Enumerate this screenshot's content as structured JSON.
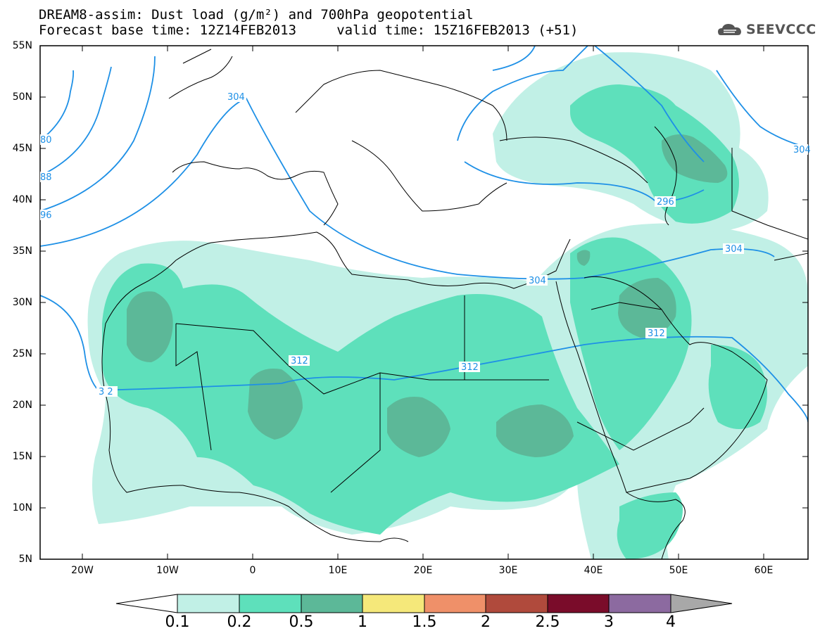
{
  "header": {
    "title_line1": "DREAM8-assim: Dust load (g/m²) and 700hPa geopotential",
    "title_line2": "Forecast base time: 12Z14FEB2013     valid time: 15Z16FEB2013 (+51)",
    "logo_text": "SEEVCCC"
  },
  "map": {
    "lat_labels": [
      "55N",
      "50N",
      "45N",
      "40N",
      "35N",
      "30N",
      "25N",
      "20N",
      "15N",
      "10N",
      "5N"
    ],
    "lon_labels": [
      "20W",
      "10W",
      "0",
      "10E",
      "20E",
      "30E",
      "40E",
      "50E",
      "60E"
    ],
    "contour_labels": [
      "304",
      "304",
      "312",
      "312",
      "296",
      "304",
      "312",
      "3 2",
      "80",
      "88",
      "96",
      "304"
    ],
    "dust_colors": {
      "light": "#c1f0e6",
      "mid": "#5ee0bb",
      "dark": "#5cb898"
    },
    "contour_color": "#1e90e6"
  },
  "colorbar": {
    "ticks": [
      "0.1",
      "0.2",
      "0.5",
      "1",
      "1.5",
      "2",
      "2.5",
      "3",
      "4"
    ],
    "colors": [
      "#c1f0e6",
      "#5ee0bb",
      "#5cb898",
      "#f5e87a",
      "#ef9069",
      "#b04a3c",
      "#7a0c2a",
      "#8c6aa0",
      "#a8a8a8"
    ],
    "low_end_color": "#ffffff"
  }
}
